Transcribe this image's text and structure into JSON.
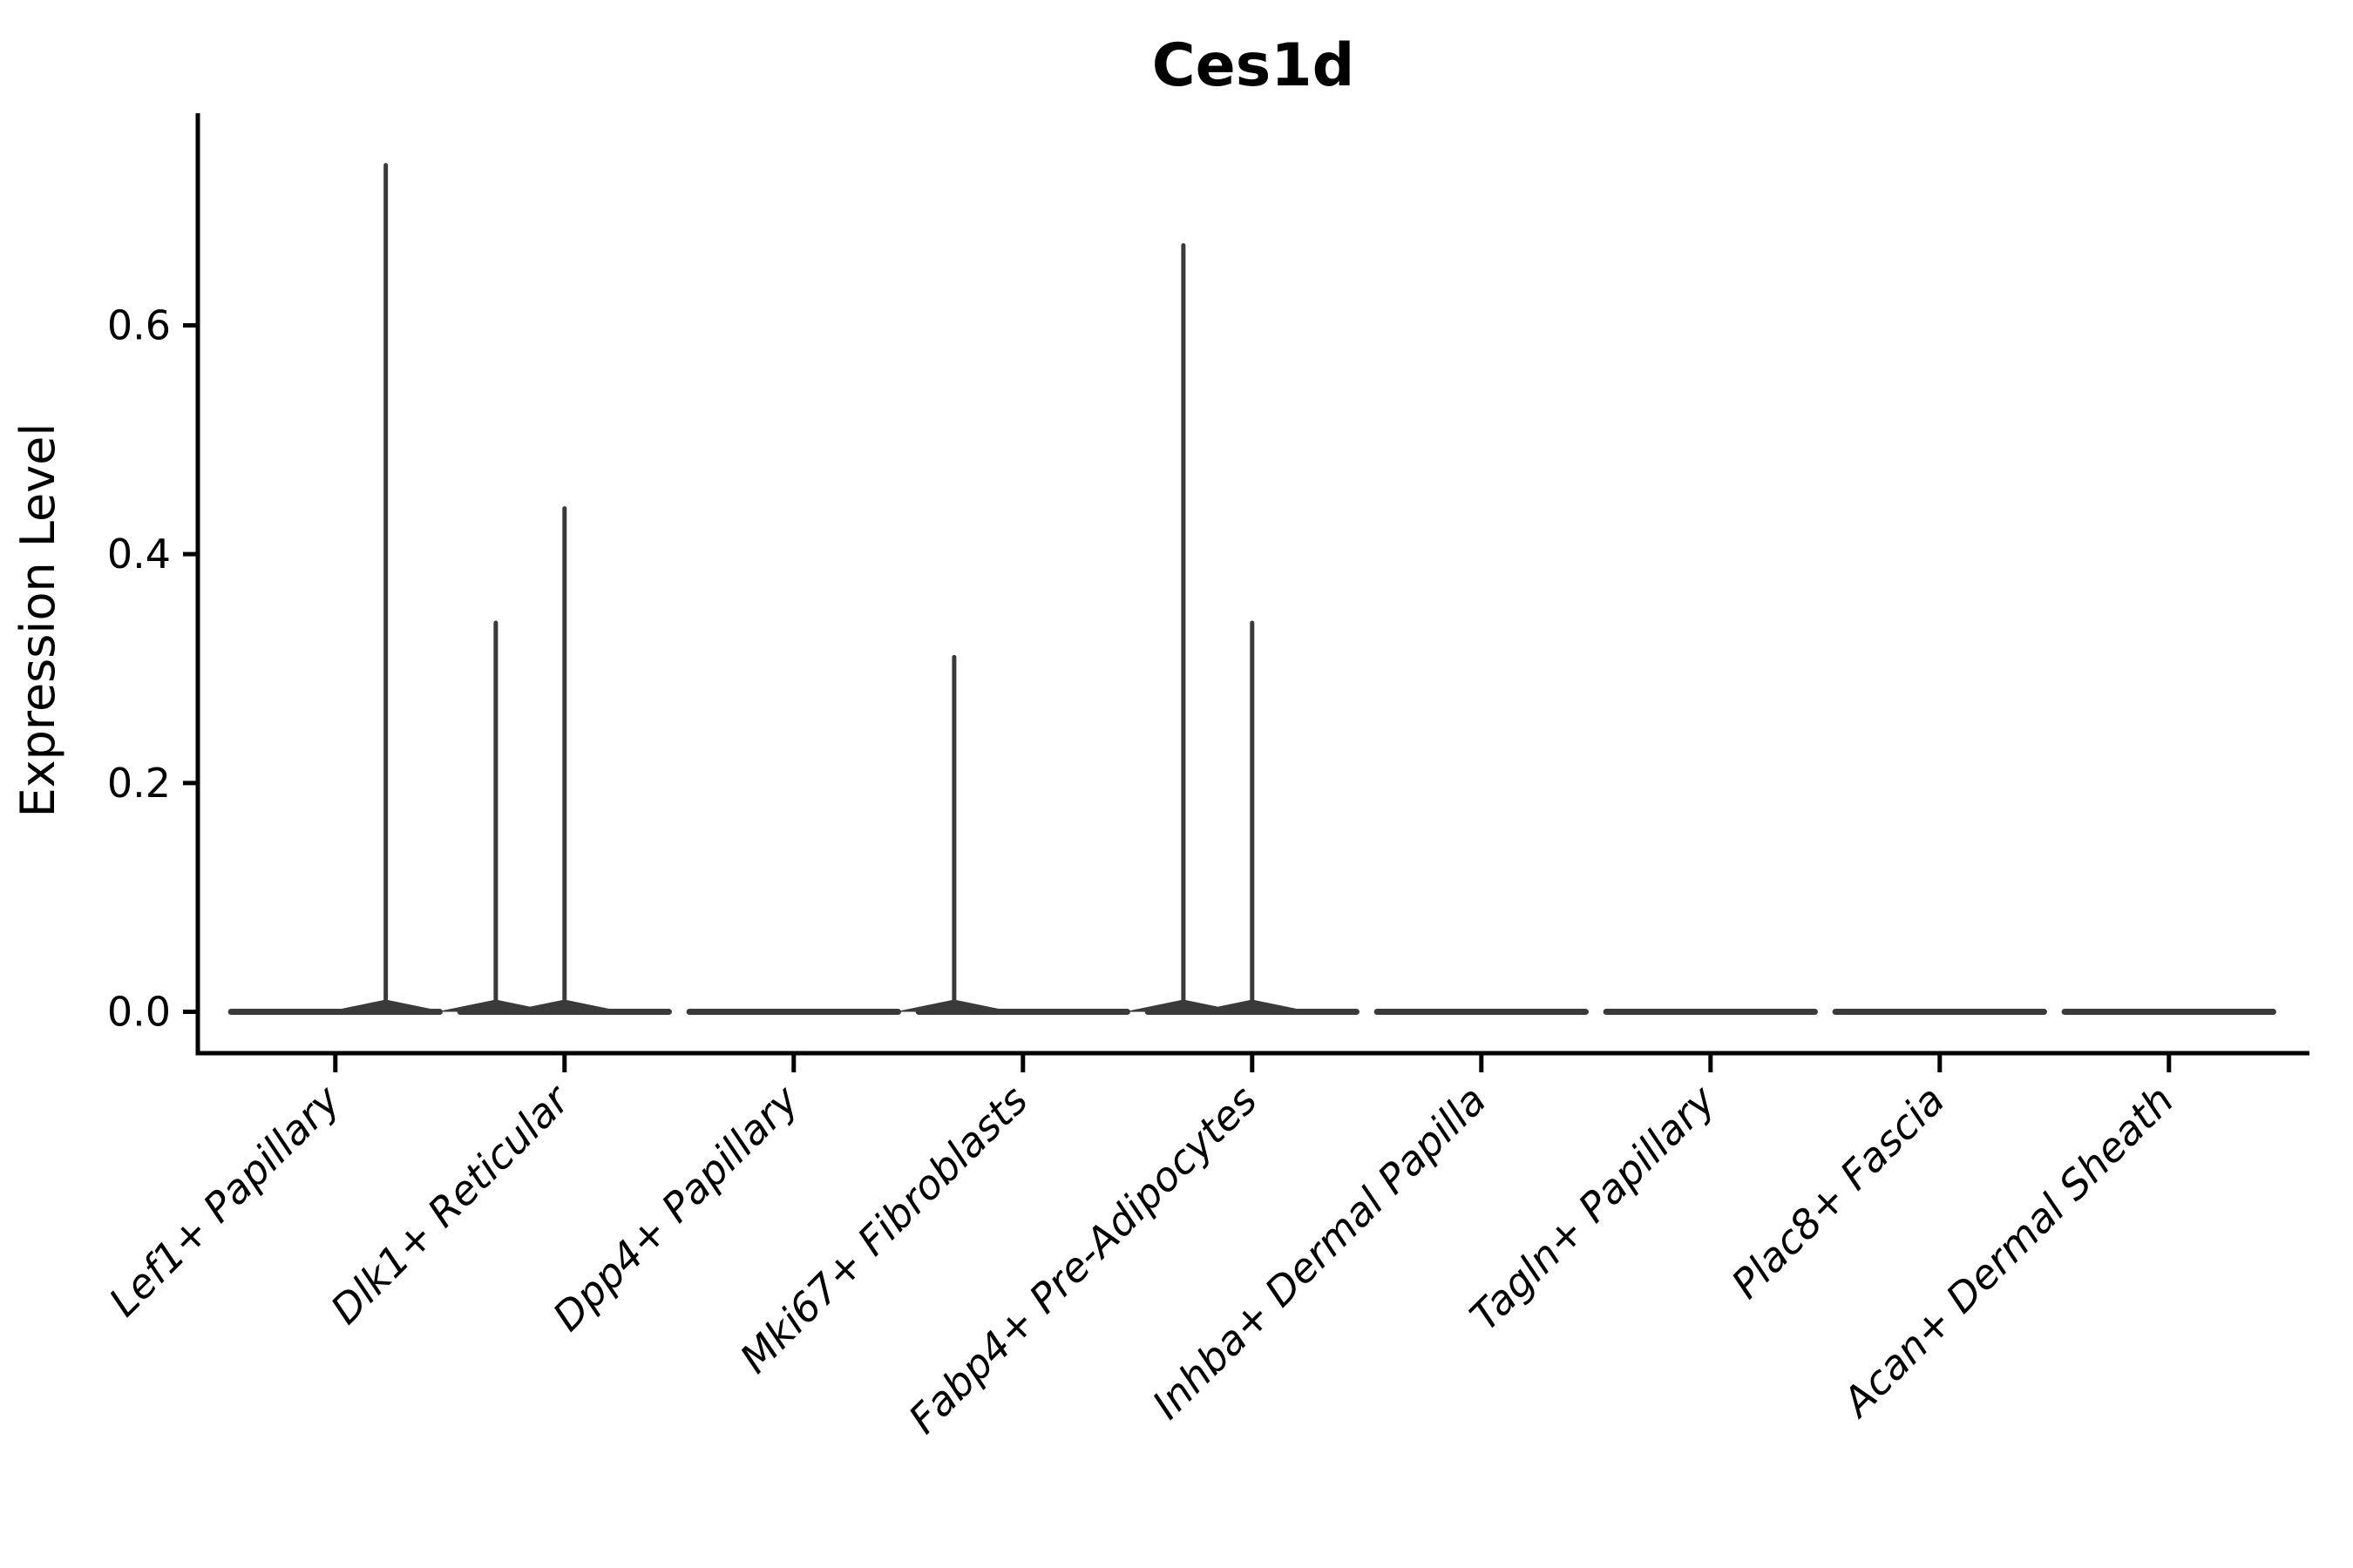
{
  "page": {
    "background_color": "#ffffff"
  },
  "chart_data": {
    "type": "violin",
    "title": "Ces1d",
    "xlabel": "",
    "ylabel": "Expression Level",
    "legend": "none",
    "grid": false,
    "ylim": [
      0,
      0.785
    ],
    "ytick_values": [
      0.0,
      0.2,
      0.4,
      0.6
    ],
    "ytick_labels": [
      "0.0",
      "0.2",
      "0.4",
      "0.6"
    ],
    "categories": [
      "Lef1+ Papillary",
      "Dlk1+ Reticular",
      "Dpp4+ Papillary",
      "Mki67+ Fibroblasts",
      "Fabp4+ Pre-Adipocytes",
      "Inhba+ Dermal Papilla",
      "Tagln+ Papillary",
      "Plac8+ Fascia",
      "Acan+ Dermal Sheath"
    ],
    "xtick_rotation_deg": 45,
    "violins": [
      {
        "category": "Lef1+ Papillary",
        "bulk_expression": 0.0,
        "base_width_frac": 0.91,
        "spikes": [
          {
            "dx_frac": 0.22,
            "max": 0.74
          }
        ]
      },
      {
        "category": "Dlk1+ Reticular",
        "bulk_expression": 0.0,
        "base_width_frac": 0.91,
        "spikes": [
          {
            "dx_frac": -0.3,
            "max": 0.34
          },
          {
            "dx_frac": 0.0,
            "max": 0.44
          }
        ]
      },
      {
        "category": "Dpp4+ Papillary",
        "bulk_expression": 0.0,
        "base_width_frac": 0.91,
        "spikes": []
      },
      {
        "category": "Mki67+ Fibroblasts",
        "bulk_expression": 0.0,
        "base_width_frac": 0.91,
        "spikes": [
          {
            "dx_frac": -0.3,
            "max": 0.31
          }
        ]
      },
      {
        "category": "Fabp4+ Pre-Adipocytes",
        "bulk_expression": 0.0,
        "base_width_frac": 0.91,
        "spikes": [
          {
            "dx_frac": -0.3,
            "max": 0.67
          },
          {
            "dx_frac": 0.0,
            "max": 0.34
          }
        ]
      },
      {
        "category": "Inhba+ Dermal Papilla",
        "bulk_expression": 0.0,
        "base_width_frac": 0.91,
        "spikes": []
      },
      {
        "category": "Tagln+ Papillary",
        "bulk_expression": 0.0,
        "base_width_frac": 0.91,
        "spikes": []
      },
      {
        "category": "Plac8+ Fascia",
        "bulk_expression": 0.0,
        "base_width_frac": 0.91,
        "spikes": []
      },
      {
        "category": "Acan+ Dermal Sheath",
        "bulk_expression": 0.0,
        "base_width_frac": 0.91,
        "spikes": []
      }
    ],
    "colors": {
      "violin": "#3a3a3a",
      "axis": "#000000",
      "text": "#000000",
      "background": "#ffffff"
    }
  }
}
